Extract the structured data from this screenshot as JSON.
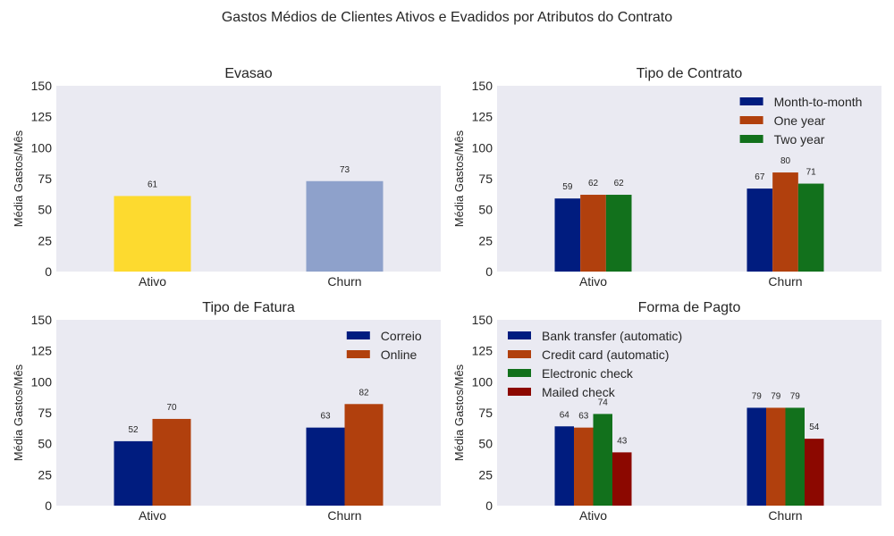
{
  "figure": {
    "title": "Gastos Médios de Clientes Ativos e Evadidos por Atributos do Contrato"
  },
  "chart_data": [
    {
      "type": "bar",
      "title": "Evasao",
      "ylabel": "Média Gastos/Mês",
      "xlabel": "",
      "ylim": [
        0,
        150
      ],
      "yticks": [
        0,
        25,
        50,
        75,
        100,
        125,
        150
      ],
      "categories": [
        "Ativo",
        "Churn"
      ],
      "bar_colors": [
        "#fdda2f",
        "#8ea1cb"
      ],
      "series": [
        {
          "values": [
            61,
            73
          ]
        }
      ],
      "legend": null
    },
    {
      "type": "bar",
      "title": "Tipo de Contrato",
      "ylabel": "Média Gastos/Mês",
      "xlabel": "",
      "ylim": [
        0,
        150
      ],
      "yticks": [
        0,
        25,
        50,
        75,
        100,
        125,
        150
      ],
      "categories": [
        "Ativo",
        "Churn"
      ],
      "series": [
        {
          "name": "Month-to-month",
          "color": "#001c7f",
          "values": [
            59,
            67
          ]
        },
        {
          "name": "One year",
          "color": "#b1400d",
          "values": [
            62,
            80
          ]
        },
        {
          "name": "Two year",
          "color": "#12711c",
          "values": [
            62,
            71
          ]
        }
      ],
      "legend": "top-right"
    },
    {
      "type": "bar",
      "title": "Tipo de Fatura",
      "ylabel": "Média Gastos/Mês",
      "xlabel": "",
      "ylim": [
        0,
        150
      ],
      "yticks": [
        0,
        25,
        50,
        75,
        100,
        125,
        150
      ],
      "categories": [
        "Ativo",
        "Churn"
      ],
      "series": [
        {
          "name": "Correio",
          "color": "#001c7f",
          "values": [
            52,
            63
          ]
        },
        {
          "name": "Online",
          "color": "#b1400d",
          "values": [
            70,
            82
          ]
        }
      ],
      "legend": "top-right"
    },
    {
      "type": "bar",
      "title": "Forma de Pagto",
      "ylabel": "Média Gastos/Mês",
      "xlabel": "",
      "ylim": [
        0,
        150
      ],
      "yticks": [
        0,
        25,
        50,
        75,
        100,
        125,
        150
      ],
      "categories": [
        "Ativo",
        "Churn"
      ],
      "series": [
        {
          "name": "Bank transfer (automatic)",
          "color": "#001c7f",
          "values": [
            64,
            79
          ]
        },
        {
          "name": "Credit card (automatic)",
          "color": "#b1400d",
          "values": [
            63,
            79
          ]
        },
        {
          "name": "Electronic check",
          "color": "#12711c",
          "values": [
            74,
            79
          ]
        },
        {
          "name": "Mailed check",
          "color": "#8c0800",
          "values": [
            43,
            54
          ]
        }
      ],
      "legend": "top-left"
    }
  ]
}
